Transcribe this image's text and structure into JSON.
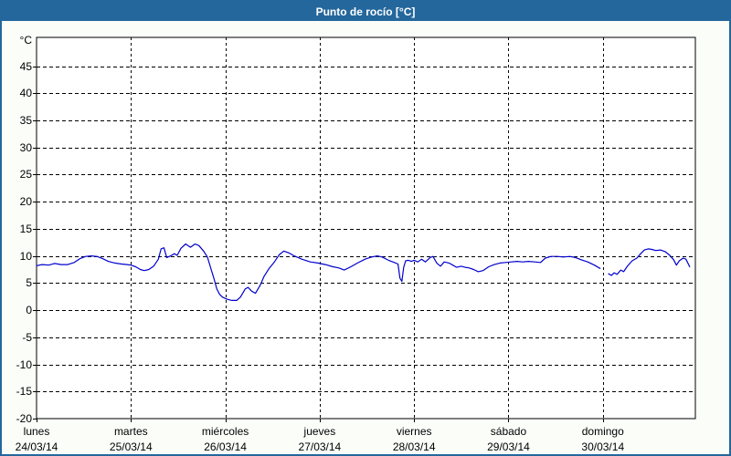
{
  "title": "Punto de rocío [°C]",
  "colors": {
    "accent": "#24679C",
    "title_text": "#FFFFFF",
    "line": "#0000CD",
    "grid": "#000000",
    "axis": "#000000",
    "plot_background": "#FFFFFF",
    "outer_background": "#FBFDF9",
    "label_text": "#000000"
  },
  "chart_data": {
    "type": "line",
    "title": "Punto de rocío [°C]",
    "xlabel": "",
    "ylabel": "°C",
    "ylim": [
      -20,
      50.3
    ],
    "yticks": [
      45,
      40,
      35,
      30,
      25,
      20,
      15,
      10,
      5,
      0,
      -5,
      -10,
      -15,
      -20
    ],
    "x_span_days": 6.98,
    "grid": "dashed",
    "legend": "none",
    "days": [
      {
        "name": "lunes",
        "date": "24/03/14"
      },
      {
        "name": "martes",
        "date": "25/03/14"
      },
      {
        "name": "miércoles",
        "date": "26/03/14"
      },
      {
        "name": "jueves",
        "date": "27/03/14"
      },
      {
        "name": "viernes",
        "date": "28/03/14"
      },
      {
        "name": "sábado",
        "date": "29/03/14"
      },
      {
        "name": "domingo",
        "date": "30/03/14"
      }
    ],
    "series": [
      {
        "name": "Punto de rocío",
        "color": "#0000CD",
        "unit": "°C",
        "segments": [
          [
            [
              0.0,
              8.2
            ],
            [
              0.06,
              8.4
            ],
            [
              0.13,
              8.3
            ],
            [
              0.19,
              8.6
            ],
            [
              0.26,
              8.4
            ],
            [
              0.33,
              8.4
            ],
            [
              0.4,
              8.8
            ],
            [
              0.46,
              9.5
            ],
            [
              0.52,
              9.9
            ],
            [
              0.58,
              10.0
            ],
            [
              0.64,
              9.9
            ],
            [
              0.7,
              9.5
            ],
            [
              0.76,
              9.0
            ],
            [
              0.83,
              8.7
            ],
            [
              0.9,
              8.5
            ],
            [
              0.96,
              8.4
            ],
            [
              1.0,
              8.3
            ],
            [
              1.05,
              8.0
            ],
            [
              1.1,
              7.5
            ],
            [
              1.14,
              7.3
            ],
            [
              1.19,
              7.5
            ],
            [
              1.24,
              8.1
            ],
            [
              1.29,
              9.4
            ],
            [
              1.32,
              11.3
            ],
            [
              1.35,
              11.5
            ],
            [
              1.38,
              9.7
            ],
            [
              1.42,
              10.0
            ],
            [
              1.46,
              10.4
            ],
            [
              1.49,
              10.1
            ],
            [
              1.53,
              11.4
            ],
            [
              1.58,
              12.2
            ],
            [
              1.63,
              11.6
            ],
            [
              1.68,
              12.2
            ],
            [
              1.72,
              11.9
            ],
            [
              1.77,
              10.9
            ],
            [
              1.81,
              9.8
            ],
            [
              1.85,
              7.5
            ],
            [
              1.88,
              5.8
            ],
            [
              1.91,
              3.9
            ],
            [
              1.94,
              2.9
            ],
            [
              1.97,
              2.4
            ],
            [
              2.02,
              2.0
            ],
            [
              2.07,
              1.8
            ],
            [
              2.12,
              1.8
            ],
            [
              2.16,
              2.4
            ],
            [
              2.21,
              3.9
            ],
            [
              2.24,
              4.2
            ],
            [
              2.28,
              3.5
            ],
            [
              2.32,
              3.1
            ],
            [
              2.37,
              4.6
            ],
            [
              2.41,
              6.2
            ],
            [
              2.46,
              7.6
            ],
            [
              2.52,
              8.9
            ],
            [
              2.57,
              10.2
            ],
            [
              2.62,
              10.9
            ],
            [
              2.68,
              10.5
            ],
            [
              2.73,
              10.0
            ],
            [
              2.81,
              9.4
            ],
            [
              2.9,
              8.9
            ],
            [
              2.98,
              8.7
            ],
            [
              3.06,
              8.4
            ],
            [
              3.14,
              8.0
            ],
            [
              3.2,
              7.8
            ],
            [
              3.26,
              7.4
            ],
            [
              3.33,
              8.0
            ],
            [
              3.4,
              8.7
            ],
            [
              3.48,
              9.4
            ],
            [
              3.55,
              9.8
            ],
            [
              3.61,
              10.0
            ],
            [
              3.66,
              9.8
            ],
            [
              3.73,
              9.2
            ],
            [
              3.79,
              8.8
            ],
            [
              3.83,
              8.5
            ],
            [
              3.85,
              5.9
            ],
            [
              3.87,
              5.3
            ],
            [
              3.89,
              7.9
            ],
            [
              3.91,
              9.1
            ],
            [
              3.94,
              9.2
            ],
            [
              3.97,
              9.0
            ],
            [
              4.0,
              9.2
            ],
            [
              4.04,
              8.9
            ],
            [
              4.08,
              9.4
            ],
            [
              4.12,
              8.9
            ],
            [
              4.17,
              9.7
            ],
            [
              4.2,
              9.9
            ],
            [
              4.24,
              8.7
            ],
            [
              4.28,
              8.1
            ],
            [
              4.32,
              8.9
            ],
            [
              4.37,
              8.7
            ],
            [
              4.41,
              8.3
            ],
            [
              4.45,
              7.9
            ],
            [
              4.5,
              8.1
            ],
            [
              4.54,
              7.9
            ],
            [
              4.58,
              7.8
            ],
            [
              4.63,
              7.5
            ],
            [
              4.68,
              7.1
            ],
            [
              4.73,
              7.3
            ],
            [
              4.79,
              8.0
            ],
            [
              4.85,
              8.4
            ],
            [
              4.91,
              8.7
            ],
            [
              4.97,
              8.8
            ],
            [
              5.03,
              8.9
            ],
            [
              5.09,
              9.0
            ],
            [
              5.15,
              8.9
            ],
            [
              5.21,
              9.0
            ],
            [
              5.28,
              8.9
            ],
            [
              5.34,
              8.8
            ],
            [
              5.39,
              9.6
            ],
            [
              5.45,
              9.9
            ],
            [
              5.52,
              9.9
            ],
            [
              5.58,
              9.8
            ],
            [
              5.65,
              9.9
            ],
            [
              5.71,
              9.7
            ],
            [
              5.77,
              9.3
            ],
            [
              5.84,
              8.9
            ],
            [
              5.91,
              8.3
            ],
            [
              5.97,
              7.7
            ]
          ],
          [
            [
              6.06,
              6.7
            ],
            [
              6.09,
              6.4
            ],
            [
              6.12,
              6.9
            ],
            [
              6.15,
              6.6
            ],
            [
              6.19,
              7.4
            ],
            [
              6.22,
              7.1
            ],
            [
              6.26,
              8.1
            ],
            [
              6.31,
              9.1
            ],
            [
              6.36,
              9.6
            ],
            [
              6.4,
              10.4
            ],
            [
              6.44,
              11.1
            ],
            [
              6.48,
              11.3
            ],
            [
              6.52,
              11.2
            ],
            [
              6.56,
              11.0
            ],
            [
              6.61,
              11.1
            ],
            [
              6.66,
              10.8
            ],
            [
              6.71,
              10.1
            ],
            [
              6.75,
              9.3
            ],
            [
              6.78,
              8.3
            ],
            [
              6.81,
              9.1
            ],
            [
              6.85,
              9.6
            ],
            [
              6.88,
              9.4
            ],
            [
              6.92,
              8.0
            ]
          ]
        ]
      }
    ]
  }
}
